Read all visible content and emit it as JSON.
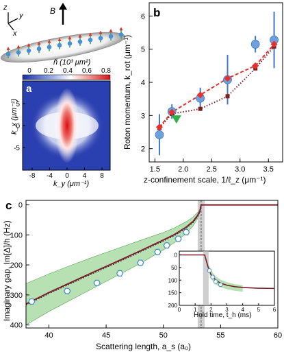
{
  "panel_a": {
    "panel_letter": "a",
    "axis_z": "z",
    "axis_y": "y",
    "axis_x": "x",
    "field_label": "B",
    "colorbar_title": "ñ (10³ μm²)",
    "colorbar_ticks": [
      "0",
      "0.2",
      "0.4",
      "0.6",
      "0.8"
    ],
    "ylabel": "k_x (μm⁻¹)",
    "xlabel": "k_y (μm⁻¹)",
    "yticks": [
      "5",
      "0",
      "-5"
    ],
    "xticks": [
      "-8",
      "-4",
      "0",
      "4",
      "8"
    ]
  },
  "chart_data": [
    {
      "panel": "b",
      "type": "scatter",
      "xlabel": "z-confinement scale, 1/ℓ_z (μm⁻¹)",
      "ylabel": "Roton momentum, k_rot (μm⁻¹)",
      "xlim": [
        1.4,
        3.75
      ],
      "ylim": [
        1.6,
        6.4
      ],
      "xticks": [
        "1.5",
        "2.0",
        "2.5",
        "3.0",
        "3.5"
      ],
      "yticks": [
        "2",
        "3",
        "4",
        "5",
        "6"
      ],
      "series": [
        {
          "marker": "circle-with-errorbar",
          "color": "#6fa0de",
          "x": [
            1.58,
            1.8,
            2.3,
            2.78,
            3.27,
            3.6
          ],
          "y": [
            2.42,
            3.12,
            3.52,
            4.08,
            5.15,
            5.28
          ],
          "err": [
            0.62,
            0.22,
            0.32,
            0.75,
            0.25,
            0.85
          ]
        },
        {
          "marker": "diamond-dashed",
          "color": "#e5322d",
          "x": [
            1.58,
            1.8,
            2.3,
            2.78,
            3.27,
            3.6
          ],
          "y": [
            2.65,
            3.1,
            3.62,
            4.12,
            4.5,
            5.15
          ]
        },
        {
          "marker": "square-dotted",
          "color": "#7a1e1e",
          "x": [
            1.58,
            1.8,
            2.3,
            2.78,
            3.27,
            3.6
          ],
          "y": [
            2.62,
            3.05,
            3.2,
            3.58,
            4.42,
            5.08
          ]
        },
        {
          "marker": "triangle-down",
          "color": "#2fb14a",
          "x": [
            1.88
          ],
          "y": [
            2.88
          ]
        }
      ]
    },
    {
      "panel": "c",
      "type": "line",
      "xlabel": "Scattering length, a_s (a₀)",
      "ylabel": "Imaginary gap, Im[Δ]/h (Hz)",
      "xlim": [
        38,
        60
      ],
      "ylim": [
        410,
        -15
      ],
      "xticks": [
        "40",
        "45",
        "50",
        "55",
        "60"
      ],
      "yticks": [
        "0",
        "100",
        "200",
        "300",
        "400"
      ],
      "critical_a": 53.3,
      "shaded_x": [
        53.0,
        53.6
      ],
      "curve_x": [
        38,
        40,
        42,
        44,
        46,
        48,
        50,
        51,
        52,
        52.6,
        53,
        53.2,
        53.3,
        53.4,
        60
      ],
      "curve_y": [
        330,
        292,
        257,
        222,
        188,
        153,
        117,
        98,
        74,
        55,
        35,
        20,
        0,
        0,
        0
      ],
      "band_upper": [
        262,
        230,
        200,
        172,
        145,
        118,
        92,
        76,
        56,
        40,
        25,
        12,
        0
      ],
      "band_lower": [
        400,
        355,
        315,
        275,
        235,
        195,
        150,
        125,
        95,
        70,
        45,
        25,
        0
      ],
      "markers_x": [
        38.5,
        41.6,
        44.2,
        46.2,
        48,
        49.5,
        50.3,
        51.3,
        52
      ],
      "markers_y": [
        322,
        287,
        260,
        228,
        193,
        157,
        135,
        113,
        91
      ],
      "inset": {
        "xlabel": "Hold time, t_h (ms)",
        "xticks": [
          "0",
          "1",
          "2",
          "3",
          "4",
          "5",
          "6"
        ],
        "yticks": [
          "0",
          "50",
          "100",
          "150",
          "200"
        ],
        "xlim": [
          0,
          6
        ],
        "ylim": [
          200,
          -15
        ],
        "curve_x": [
          0,
          1.6,
          1.8,
          2.0,
          2.3,
          2.6,
          3.0,
          3.5,
          4.0,
          5.0,
          6.0
        ],
        "curve_y": [
          0,
          0,
          45,
          78,
          100,
          112,
          120,
          126,
          129,
          132,
          133
        ],
        "band_upper": [
          0,
          0,
          30,
          62,
          85,
          98,
          108,
          116,
          120
        ],
        "band_lower": [
          0,
          0,
          60,
          95,
          118,
          128,
          136,
          142,
          146
        ],
        "band_x": [
          0,
          1.6,
          1.8,
          2.0,
          2.3,
          2.6,
          3.0,
          3.5,
          4.0
        ],
        "markers_x": [
          1.9,
          2.1,
          2.3,
          2.6
        ],
        "markers_y": [
          62,
          88,
          106,
          118
        ]
      }
    }
  ],
  "panel_labels": {
    "b": "b",
    "c": "c"
  }
}
